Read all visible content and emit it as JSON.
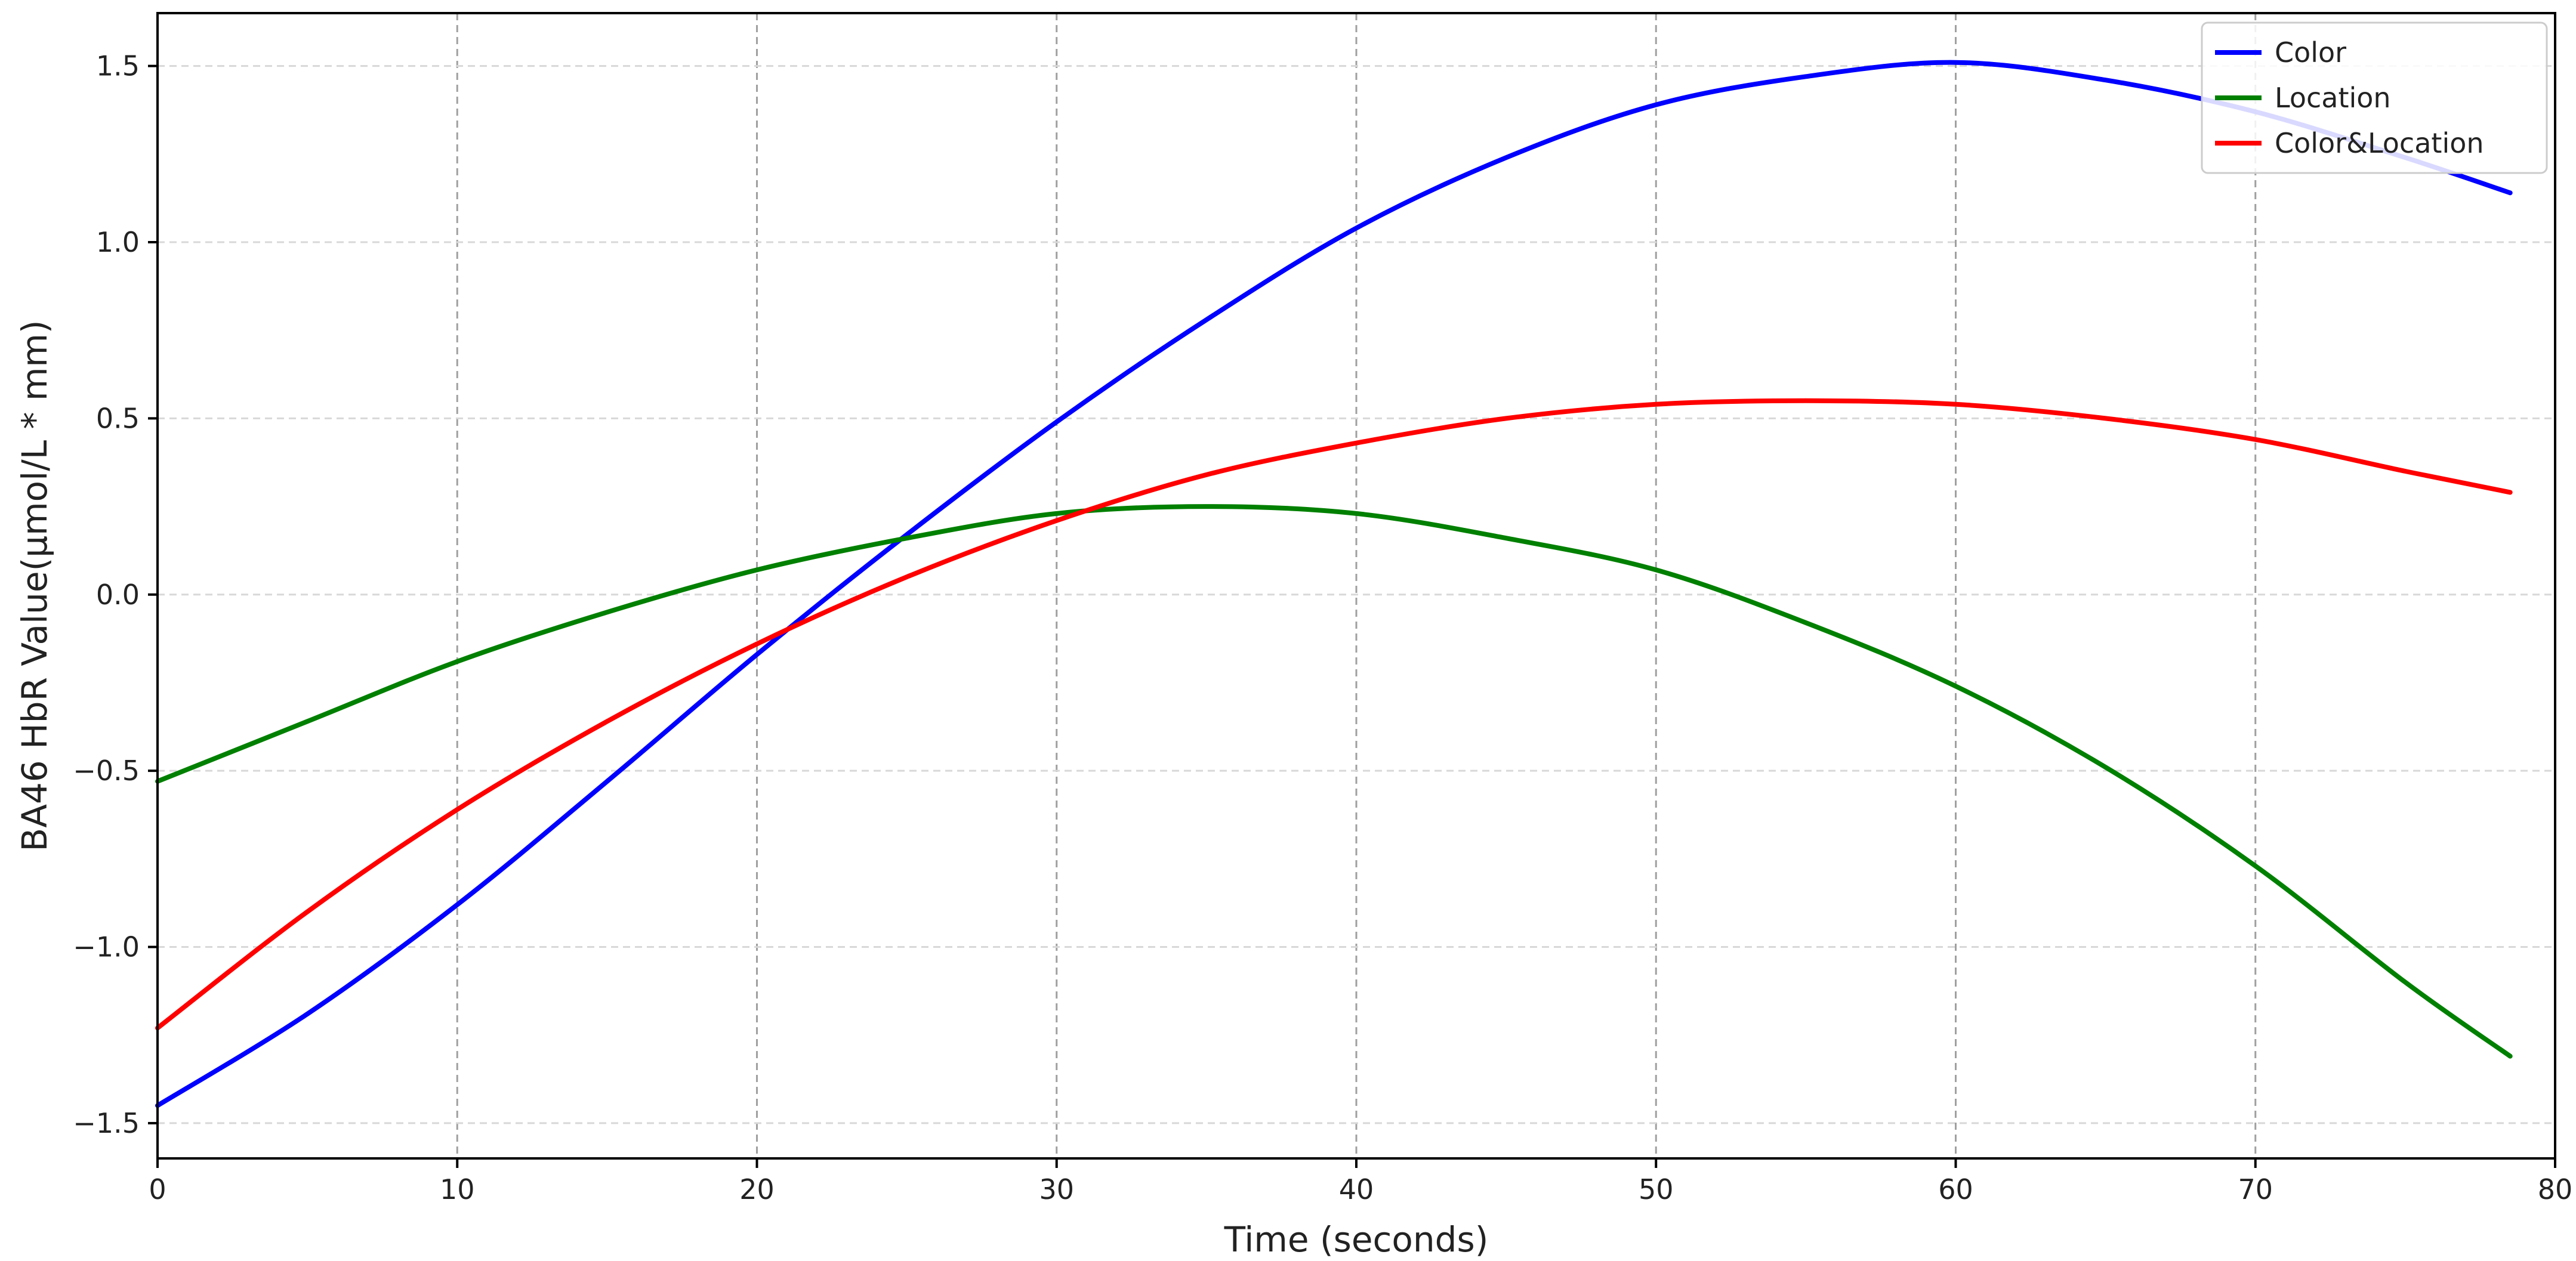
{
  "chart_data": {
    "type": "line",
    "title": "",
    "xlabel": "Time (seconds)",
    "ylabel": "BA46 HbR Value(μmol/L * mm)",
    "xlim": [
      0,
      80
    ],
    "ylim": [
      -1.6,
      1.65
    ],
    "xticks": [
      0,
      10,
      20,
      30,
      40,
      50,
      60,
      70,
      80
    ],
    "xtick_labels": [
      "0",
      "10",
      "20",
      "30",
      "40",
      "50",
      "60",
      "70",
      "80"
    ],
    "yticks": [
      -1.5,
      -1.0,
      -0.5,
      0.0,
      0.5,
      1.0,
      1.5
    ],
    "ytick_labels": [
      "−1.5",
      "−1.0",
      "−0.5",
      "0.0",
      "0.5",
      "1.0",
      "1.5"
    ],
    "grid": true,
    "legend_position": "top-right",
    "x": [
      0,
      5,
      10,
      15,
      20,
      25,
      30,
      35,
      40,
      45,
      50,
      55,
      60,
      65,
      70,
      75,
      78.5
    ],
    "series": [
      {
        "name": "Color",
        "color": "#0000ff",
        "values": [
          -1.45,
          -1.19,
          -0.88,
          -0.53,
          -0.17,
          0.17,
          0.49,
          0.78,
          1.04,
          1.24,
          1.39,
          1.47,
          1.51,
          1.46,
          1.37,
          1.24,
          1.14
        ]
      },
      {
        "name": "Location",
        "color": "#008000",
        "values": [
          -0.53,
          -0.36,
          -0.19,
          -0.05,
          0.07,
          0.16,
          0.23,
          0.25,
          0.23,
          0.16,
          0.07,
          -0.08,
          -0.26,
          -0.49,
          -0.77,
          -1.1,
          -1.31
        ]
      },
      {
        "name": "Color&Location",
        "color": "#ff0000",
        "values": [
          -1.23,
          -0.9,
          -0.61,
          -0.36,
          -0.14,
          0.05,
          0.21,
          0.34,
          0.43,
          0.5,
          0.54,
          0.55,
          0.54,
          0.5,
          0.44,
          0.35,
          0.29
        ]
      }
    ]
  }
}
